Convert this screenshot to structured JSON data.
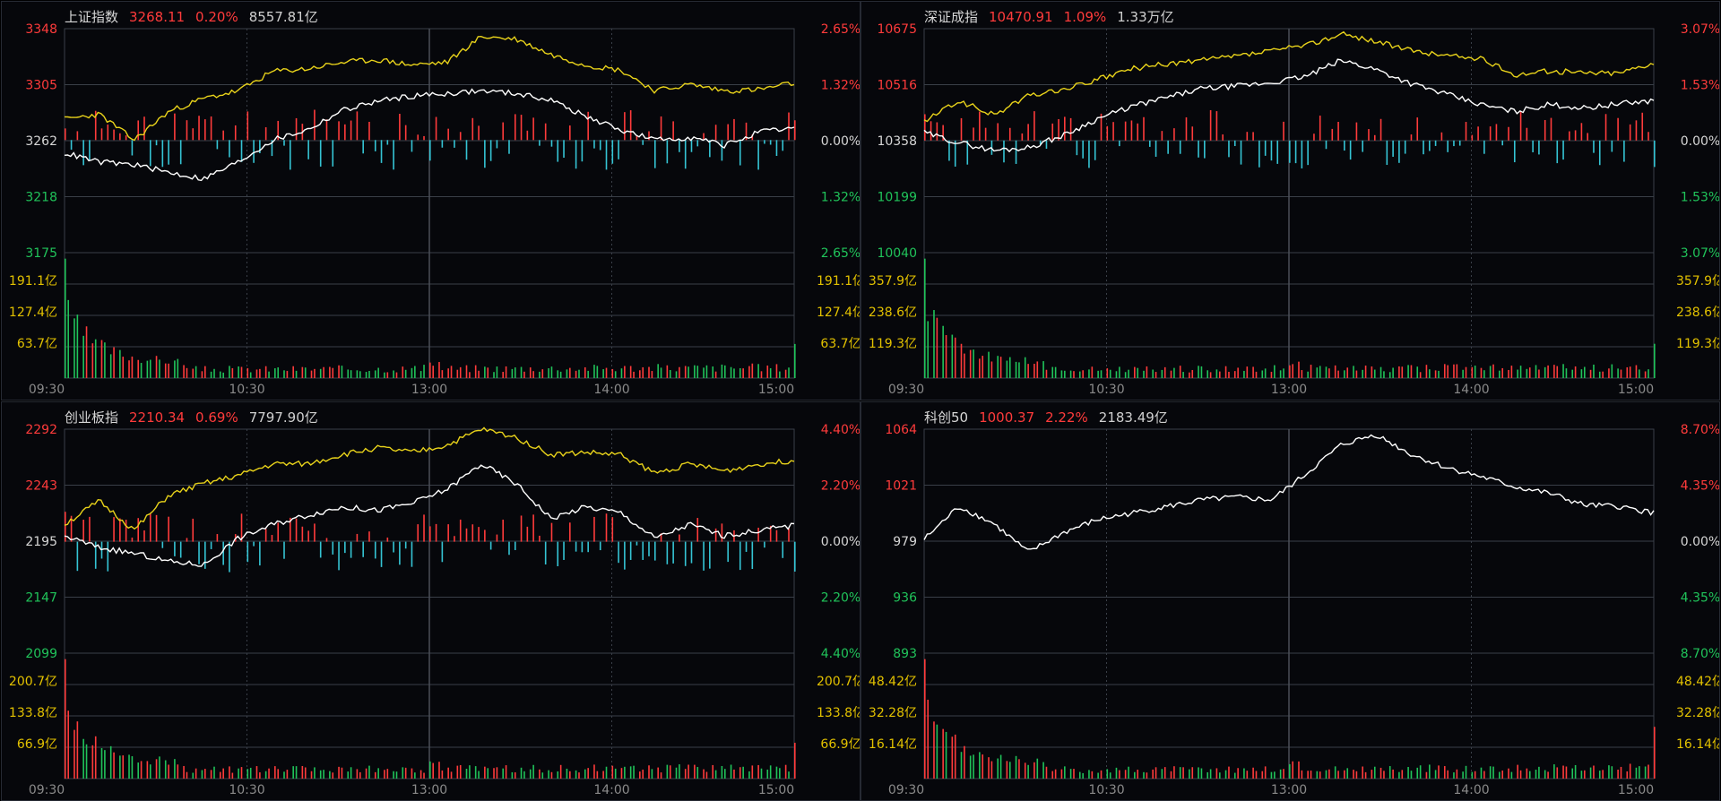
{
  "colors": {
    "up": "#ff3b3b",
    "down": "#20c35a",
    "flat": "#d6d6d6",
    "vol_axis": "#e2c100",
    "yellow_line": "#e8d21a",
    "white_line": "#ffffff",
    "down_bar": "#35c4d4",
    "grid": "#3a3f48"
  },
  "chart_data": [
    {
      "type": "line",
      "title": "上证指数",
      "header": {
        "price": "3268.11",
        "change_pct": "0.20%",
        "turnover": "8557.81亿"
      },
      "price_ticks": [
        "3348",
        "3305",
        "3262",
        "3218",
        "3175"
      ],
      "pct_ticks": [
        "2.65%",
        "1.32%",
        "0.00%",
        "1.32%",
        "2.65%"
      ],
      "volume_ticks": [
        "191.1亿",
        "127.4亿",
        "63.7亿"
      ],
      "time_ticks": [
        "09:30",
        "10:30",
        "13:00",
        "14:00",
        "15:00"
      ],
      "ylim": [
        3175,
        3348
      ],
      "base": 3262,
      "series": [
        {
          "key": "white",
          "values": [
            3252,
            3245,
            3243,
            3237,
            3232,
            3245,
            3262,
            3270,
            3285,
            3292,
            3296,
            3298,
            3300,
            3298,
            3293,
            3280,
            3270,
            3262,
            3264,
            3258,
            3268,
            3271
          ]
        },
        {
          "key": "yellow",
          "values": [
            3278,
            3282,
            3262,
            3284,
            3294,
            3300,
            3315,
            3317,
            3322,
            3324,
            3320,
            3322,
            3342,
            3340,
            3328,
            3320,
            3316,
            3300,
            3305,
            3300,
            3301,
            3306
          ]
        }
      ],
      "flow_seed": 11,
      "volume_peak": 238,
      "volume_last": 68
    },
    {
      "type": "line",
      "title": "深证成指",
      "header": {
        "price": "10470.91",
        "change_pct": "1.09%",
        "turnover": "1.33万亿"
      },
      "price_ticks": [
        "10675",
        "10516",
        "10358",
        "10199",
        "10040"
      ],
      "pct_ticks": [
        "3.07%",
        "1.53%",
        "0.00%",
        "1.53%",
        "3.07%"
      ],
      "volume_ticks": [
        "357.9亿",
        "238.6亿",
        "119.3亿"
      ],
      "time_ticks": [
        "09:30",
        "10:30",
        "13:00",
        "14:00",
        "15:00"
      ],
      "ylim": [
        10040,
        10675
      ],
      "base": 10358,
      "series": [
        {
          "key": "white",
          "values": [
            10380,
            10352,
            10330,
            10338,
            10372,
            10420,
            10455,
            10480,
            10505,
            10512,
            10522,
            10540,
            10585,
            10560,
            10520,
            10490,
            10460,
            10440,
            10460,
            10450,
            10462,
            10471
          ]
        },
        {
          "key": "yellow",
          "values": [
            10412,
            10470,
            10430,
            10485,
            10502,
            10530,
            10562,
            10575,
            10585,
            10597,
            10612,
            10628,
            10660,
            10640,
            10612,
            10600,
            10590,
            10545,
            10555,
            10550,
            10550,
            10580
          ]
        }
      ],
      "flow_seed": 23,
      "volume_peak": 470,
      "volume_last": 135
    },
    {
      "type": "line",
      "title": "创业板指",
      "header": {
        "price": "2210.34",
        "change_pct": "0.69%",
        "turnover": "7797.90亿"
      },
      "price_ticks": [
        "2292",
        "2243",
        "2195",
        "2147",
        "2099"
      ],
      "pct_ticks": [
        "4.40%",
        "2.20%",
        "0.00%",
        "2.20%",
        "4.40%"
      ],
      "volume_ticks": [
        "200.7亿",
        "133.8亿",
        "66.9亿"
      ],
      "time_ticks": [
        "09:30",
        "10:30",
        "13:00",
        "14:00",
        "15:00"
      ],
      "ylim": [
        2099,
        2292
      ],
      "base": 2195,
      "series": [
        {
          "key": "white",
          "values": [
            2200,
            2190,
            2185,
            2178,
            2175,
            2198,
            2210,
            2218,
            2225,
            2222,
            2228,
            2240,
            2262,
            2245,
            2215,
            2225,
            2220,
            2198,
            2210,
            2200,
            2205,
            2209
          ]
        },
        {
          "key": "yellow",
          "values": [
            2210,
            2230,
            2205,
            2235,
            2245,
            2252,
            2262,
            2262,
            2270,
            2276,
            2272,
            2278,
            2292,
            2285,
            2270,
            2272,
            2270,
            2254,
            2262,
            2256,
            2262,
            2265
          ]
        }
      ],
      "flow_seed": 37,
      "volume_peak": 250,
      "volume_last": 75
    },
    {
      "type": "line",
      "title": "科创50",
      "header": {
        "price": "1000.37",
        "change_pct": "2.22%",
        "turnover": "2183.49亿"
      },
      "price_ticks": [
        "1064",
        "1021",
        "979",
        "936",
        "893"
      ],
      "pct_ticks": [
        "8.70%",
        "4.35%",
        "0.00%",
        "4.35%",
        "8.70%"
      ],
      "volume_ticks": [
        "48.42亿",
        "32.28亿",
        "16.14亿"
      ],
      "time_ticks": [
        "09:30",
        "10:30",
        "13:00",
        "14:00",
        "15:00"
      ],
      "ylim": [
        893,
        1064
      ],
      "base": 979,
      "series": [
        {
          "key": "white",
          "values": [
            980,
            1005,
            992,
            970,
            985,
            995,
            1000,
            1005,
            1010,
            1012,
            1010,
            1030,
            1052,
            1060,
            1045,
            1035,
            1028,
            1020,
            1015,
            1006,
            1005,
            1000
          ]
        }
      ],
      "flow_seed": 0,
      "volume_peak": 60,
      "volume_last": 26
    }
  ]
}
